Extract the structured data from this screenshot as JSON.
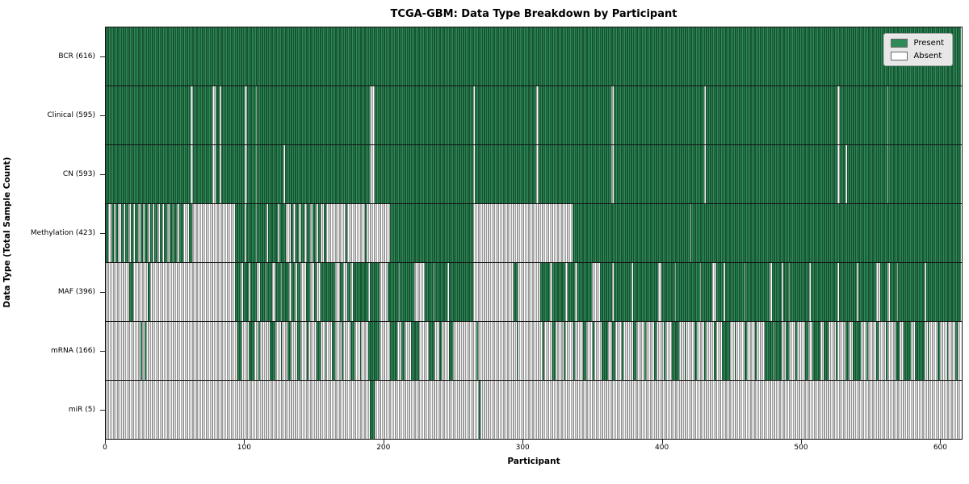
{
  "title": "TCGA-GBM: Data Type Breakdown by Participant",
  "axes": {
    "xlabel": "Participant",
    "ylabel": "Data Type (Total Sample Count)",
    "x_tick_labels": [
      "0",
      "100",
      "200",
      "300",
      "400",
      "500",
      "600"
    ]
  },
  "legend": {
    "items": [
      {
        "label": "Present",
        "color": "#2e8b57"
      },
      {
        "label": "Absent",
        "color": "#ffffff"
      }
    ]
  },
  "colors": {
    "present_fill": "#2e8b57",
    "present_edge": "#0a2616",
    "absent_fill": "#ffffff",
    "absent_edge": "#9a9a9a",
    "frame": "#141414",
    "legend_bg": "#e7e7e7"
  },
  "chart_data": {
    "type": "heatmap",
    "title": "TCGA-GBM: Data Type Breakdown by Participant",
    "xlabel": "Participant",
    "ylabel": "Data Type (Total Sample Count)",
    "legend": [
      "Present",
      "Absent"
    ],
    "legend_position": "upper right",
    "n_participants": 616,
    "x_ticks": [
      0,
      100,
      200,
      300,
      400,
      500,
      600
    ],
    "x_range": [
      0,
      616
    ],
    "categories": [
      "BCR (616)",
      "Clinical (595)",
      "CN (593)",
      "Methylation (423)",
      "MAF (396)",
      "mRNA (166)",
      "miR (5)"
    ],
    "values": [
      616,
      595,
      593,
      423,
      396,
      166,
      5
    ],
    "rows": [
      {
        "label": "BCR (616)",
        "data_type": "BCR",
        "present_count": 616,
        "present_runs": [
          [
            0,
            616
          ]
        ]
      },
      {
        "label": "Clinical (595)",
        "data_type": "Clinical",
        "present_count": 595,
        "present_runs": [
          [
            0,
            61
          ],
          [
            63,
            14
          ],
          [
            79,
            3
          ],
          [
            83,
            17
          ],
          [
            102,
            6
          ],
          [
            109,
            81
          ],
          [
            194,
            71
          ],
          [
            266,
            44
          ],
          [
            312,
            52
          ],
          [
            366,
            65
          ],
          [
            432,
            95
          ],
          [
            529,
            34
          ],
          [
            564,
            52
          ]
        ]
      },
      {
        "label": "CN (593)",
        "data_type": "CN",
        "present_count": 593,
        "present_runs": [
          [
            0,
            61
          ],
          [
            63,
            14
          ],
          [
            79,
            3
          ],
          [
            83,
            17
          ],
          [
            102,
            6
          ],
          [
            109,
            19
          ],
          [
            129,
            61
          ],
          [
            194,
            71
          ],
          [
            266,
            44
          ],
          [
            312,
            52
          ],
          [
            366,
            65
          ],
          [
            432,
            95
          ],
          [
            529,
            4
          ],
          [
            534,
            29
          ],
          [
            564,
            52
          ]
        ]
      },
      {
        "label": "Methylation (423)",
        "data_type": "Methylation",
        "present_count": 423,
        "present_runs": [
          [
            0,
            2
          ],
          [
            4,
            2
          ],
          [
            7,
            2
          ],
          [
            11,
            2
          ],
          [
            14,
            2
          ],
          [
            18,
            2
          ],
          [
            21,
            2
          ],
          [
            25,
            2
          ],
          [
            28,
            2
          ],
          [
            32,
            2
          ],
          [
            35,
            2
          ],
          [
            39,
            2
          ],
          [
            42,
            2
          ],
          [
            46,
            2
          ],
          [
            49,
            2
          ],
          [
            53,
            3
          ],
          [
            60,
            2
          ],
          [
            93,
            7
          ],
          [
            101,
            7
          ],
          [
            109,
            7
          ],
          [
            117,
            7
          ],
          [
            125,
            5
          ],
          [
            133,
            2
          ],
          [
            137,
            2
          ],
          [
            141,
            2
          ],
          [
            145,
            2
          ],
          [
            149,
            2
          ],
          [
            153,
            2
          ],
          [
            157,
            2
          ],
          [
            173,
            1
          ],
          [
            187,
            1
          ],
          [
            205,
            60
          ],
          [
            336,
            85
          ],
          [
            422,
            194
          ]
        ]
      },
      {
        "label": "MAF (396)",
        "data_type": "MAF",
        "present_count": 396,
        "present_runs": [
          [
            17,
            3
          ],
          [
            30,
            2
          ],
          [
            93,
            4
          ],
          [
            99,
            4
          ],
          [
            104,
            5
          ],
          [
            111,
            4
          ],
          [
            116,
            4
          ],
          [
            122,
            4
          ],
          [
            127,
            5
          ],
          [
            134,
            2
          ],
          [
            138,
            2
          ],
          [
            144,
            3
          ],
          [
            150,
            2
          ],
          [
            155,
            2
          ],
          [
            157,
            8
          ],
          [
            169,
            2
          ],
          [
            174,
            2
          ],
          [
            178,
            3
          ],
          [
            181,
            8
          ],
          [
            190,
            7
          ],
          [
            203,
            8
          ],
          [
            212,
            10
          ],
          [
            230,
            6
          ],
          [
            237,
            9
          ],
          [
            247,
            18
          ],
          [
            294,
            3
          ],
          [
            313,
            7
          ],
          [
            322,
            9
          ],
          [
            333,
            5
          ],
          [
            340,
            10
          ],
          [
            356,
            9
          ],
          [
            366,
            13
          ],
          [
            380,
            18
          ],
          [
            400,
            10
          ],
          [
            411,
            17
          ],
          [
            429,
            8
          ],
          [
            440,
            5
          ],
          [
            446,
            14
          ],
          [
            461,
            17
          ],
          [
            480,
            7
          ],
          [
            488,
            4
          ],
          [
            493,
            14
          ],
          [
            508,
            19
          ],
          [
            528,
            13
          ],
          [
            542,
            13
          ],
          [
            558,
            5
          ],
          [
            565,
            5
          ],
          [
            571,
            19
          ],
          [
            591,
            25
          ]
        ]
      },
      {
        "label": "mRNA (166)",
        "data_type": "mRNA",
        "present_count": 166,
        "present_runs": [
          [
            25,
            1
          ],
          [
            28,
            1
          ],
          [
            95,
            3
          ],
          [
            103,
            4
          ],
          [
            110,
            1
          ],
          [
            118,
            4
          ],
          [
            126,
            1
          ],
          [
            131,
            2
          ],
          [
            138,
            2
          ],
          [
            145,
            1
          ],
          [
            152,
            3
          ],
          [
            158,
            1
          ],
          [
            163,
            2
          ],
          [
            170,
            1
          ],
          [
            176,
            3
          ],
          [
            183,
            1
          ],
          [
            189,
            8
          ],
          [
            205,
            5
          ],
          [
            213,
            2
          ],
          [
            220,
            6
          ],
          [
            233,
            4
          ],
          [
            240,
            2
          ],
          [
            247,
            3
          ],
          [
            267,
            1
          ],
          [
            296,
            1
          ],
          [
            315,
            1
          ],
          [
            322,
            2
          ],
          [
            330,
            1
          ],
          [
            337,
            1
          ],
          [
            344,
            2
          ],
          [
            351,
            1
          ],
          [
            357,
            5
          ],
          [
            365,
            2
          ],
          [
            372,
            1
          ],
          [
            380,
            2
          ],
          [
            388,
            1
          ],
          [
            395,
            2
          ],
          [
            402,
            1
          ],
          [
            408,
            5
          ],
          [
            417,
            1
          ],
          [
            424,
            2
          ],
          [
            431,
            1
          ],
          [
            438,
            2
          ],
          [
            444,
            6
          ],
          [
            453,
            1
          ],
          [
            460,
            2
          ],
          [
            468,
            1
          ],
          [
            475,
            6
          ],
          [
            482,
            5
          ],
          [
            490,
            2
          ],
          [
            497,
            1
          ],
          [
            504,
            2
          ],
          [
            509,
            6
          ],
          [
            517,
            4
          ],
          [
            526,
            1
          ],
          [
            533,
            2
          ],
          [
            538,
            6
          ],
          [
            548,
            1
          ],
          [
            555,
            2
          ],
          [
            562,
            1
          ],
          [
            569,
            3
          ],
          [
            575,
            5
          ],
          [
            583,
            7
          ],
          [
            592,
            1
          ],
          [
            599,
            2
          ],
          [
            606,
            1
          ],
          [
            612,
            2
          ]
        ]
      },
      {
        "label": "miR (5)",
        "data_type": "miR",
        "present_count": 5,
        "present_runs": [
          [
            190,
            4
          ],
          [
            269,
            1
          ]
        ]
      }
    ]
  }
}
